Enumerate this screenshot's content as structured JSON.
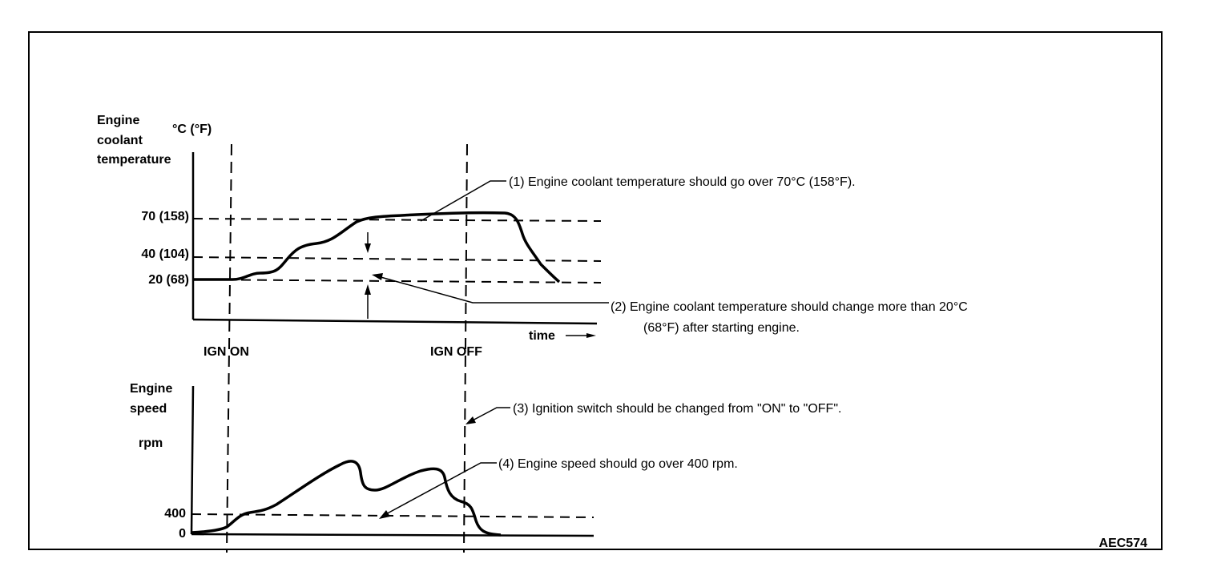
{
  "figure_id": "AEC574",
  "top_chart": {
    "y_title_lines": [
      "Engine",
      "coolant",
      "temperature"
    ],
    "y_unit": "°C (°F)",
    "ticks": [
      "70 (158)",
      "40 (104)",
      "20 (68)"
    ],
    "x_label": "time",
    "ign_on": "IGN ON",
    "ign_off": "IGN OFF"
  },
  "bottom_chart": {
    "y_title_lines": [
      "Engine",
      "speed"
    ],
    "y_unit": "rpm",
    "ticks": [
      "400",
      "0"
    ]
  },
  "notes": {
    "n1": "(1)   Engine coolant temperature should go over 70°C (158°F).",
    "n2a": "(2)   Engine coolant temperature should change more than 20°C",
    "n2b": "(68°F) after starting engine.",
    "n3": "(3)   Ignition switch should be changed from \"ON\" to \"OFF\".",
    "n4": "(4)   Engine speed should go over 400 rpm."
  },
  "chart_data": [
    {
      "type": "line",
      "ylabel": "Engine coolant temperature",
      "y_unit": "°C (°F)",
      "y_ticks": [
        20,
        40,
        70
      ],
      "reference_lines": [
        20,
        40,
        70
      ],
      "events": [
        "IGN ON",
        "IGN OFF"
      ]
    },
    {
      "type": "line",
      "ylabel": "Engine speed",
      "y_unit": "rpm",
      "y_ticks": [
        0,
        400
      ],
      "reference_lines": [
        400
      ],
      "events": [
        "IGN ON",
        "IGN OFF"
      ]
    }
  ]
}
